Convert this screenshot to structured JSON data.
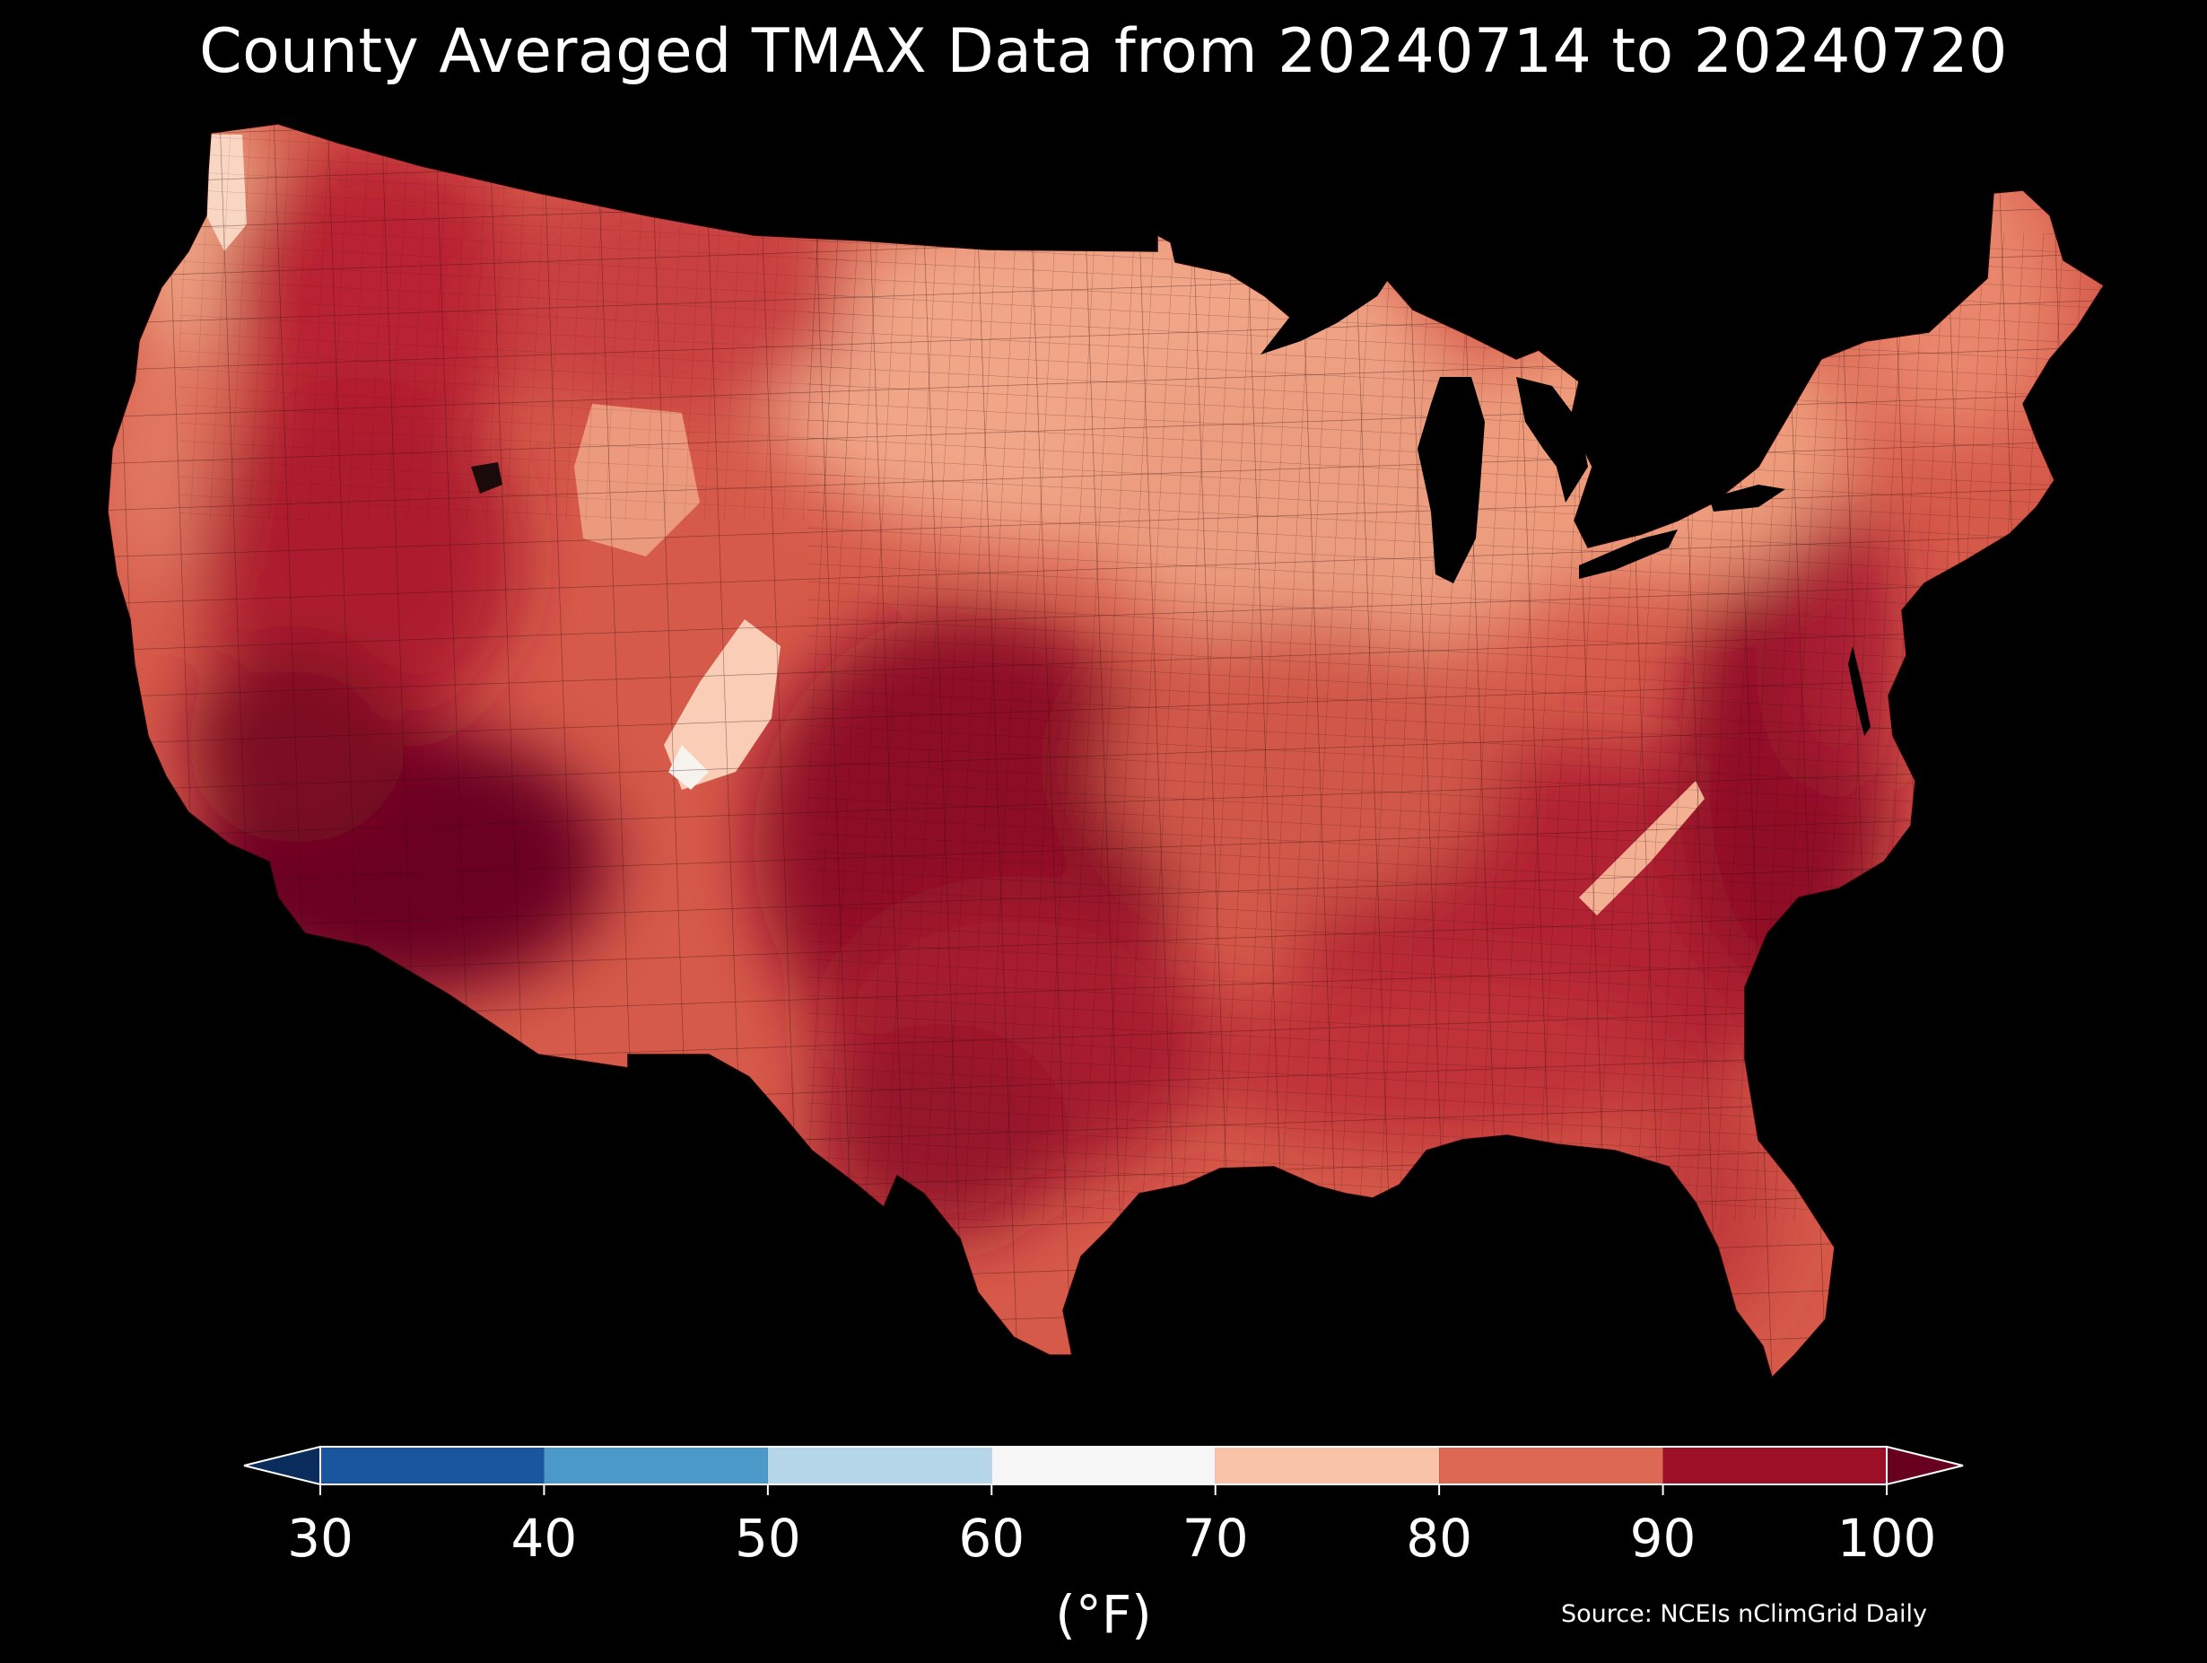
{
  "title": "County Averaged TMAX Data from 20240714 to 20240720",
  "colorbar": {
    "ticks": [
      "30",
      "40",
      "50",
      "60",
      "70",
      "80",
      "90",
      "100"
    ],
    "bins": [
      {
        "min": 30,
        "max": 40,
        "color": "#1a559f"
      },
      {
        "min": 40,
        "max": 50,
        "color": "#4b99c9"
      },
      {
        "min": 50,
        "max": 60,
        "color": "#b5d6e9"
      },
      {
        "min": 60,
        "max": 70,
        "color": "#f6f6f6"
      },
      {
        "min": 70,
        "max": 80,
        "color": "#f9c3a8"
      },
      {
        "min": 80,
        "max": 90,
        "color": "#dd6854"
      },
      {
        "min": 90,
        "max": 100,
        "color": "#9d0f27"
      }
    ],
    "under_color": "#0a2d5e",
    "over_color": "#67001f",
    "extend": "both",
    "unit_label": "(°F)"
  },
  "source": "Source: NCEIs nClimGrid Daily",
  "map": {
    "region": "Contiguous United States",
    "level": "county",
    "hot_regions": [
      "Desert Southwest",
      "Texas / Southern Plains",
      "Southeast",
      "Mid-Atlantic"
    ],
    "cool_regions": [
      "Pacific Northwest coast",
      "Colorado Rockies",
      "Upper Midwest",
      "Appalachians",
      "Northern New England"
    ]
  }
}
